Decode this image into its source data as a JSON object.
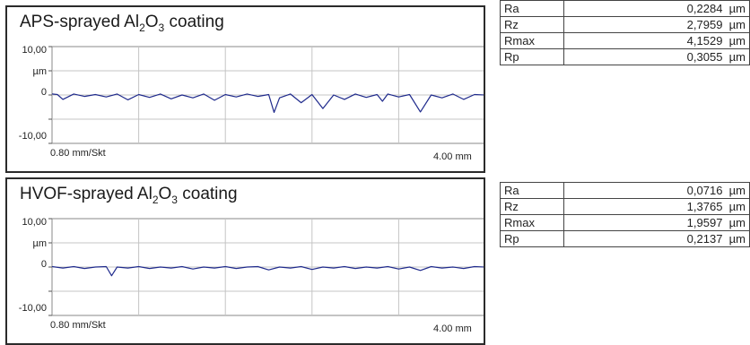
{
  "panels": [
    {
      "title_pre": "APS-sprayed Al",
      "title_sub1": "2",
      "title_mid": "O",
      "title_sub2": "3",
      "title_post": " coating",
      "y_top_label": "10,00",
      "y_unit_label": "µm",
      "y_zero_label": "0",
      "y_bottom_label": "-10,00",
      "x_scale_label": "0.80 mm/Skt",
      "x_end_label": "4.00 mm",
      "line_color": "#1f2a8c"
    },
    {
      "title_pre": "HVOF-sprayed Al",
      "title_sub1": "2",
      "title_mid": "O",
      "title_sub2": "3",
      "title_post": " coating",
      "y_top_label": "10,00",
      "y_unit_label": "µm",
      "y_zero_label": "0",
      "y_bottom_label": "-10,00",
      "x_scale_label": "0.80 mm/Skt",
      "x_end_label": "4.00 mm",
      "line_color": "#1f2a8c"
    }
  ],
  "tables": [
    {
      "rows": [
        {
          "name": "Ra",
          "value": "0,2284",
          "unit": "µm"
        },
        {
          "name": "Rz",
          "value": "2,7959",
          "unit": "µm"
        },
        {
          "name": "Rmax",
          "value": "4,1529",
          "unit": "µm"
        },
        {
          "name": "Rp",
          "value": "0,3055",
          "unit": "µm"
        }
      ]
    },
    {
      "rows": [
        {
          "name": "Ra",
          "value": "0,0716",
          "unit": "µm"
        },
        {
          "name": "Rz",
          "value": "1,3765",
          "unit": "µm"
        },
        {
          "name": "Rmax",
          "value": "1,9597",
          "unit": "µm"
        },
        {
          "name": "Rp",
          "value": "0,2137",
          "unit": "µm"
        }
      ]
    }
  ],
  "chart_data": [
    {
      "type": "line",
      "title": "APS-sprayed Al2O3 coating",
      "xlabel": "0.80 mm/Skt",
      "ylabel": "µm",
      "xlim": [
        0,
        4.0
      ],
      "ylim": [
        -10,
        10
      ],
      "grid": true,
      "x_step": 0.8,
      "series": [
        {
          "x": [
            0.0,
            0.05,
            0.1,
            0.2,
            0.3,
            0.4,
            0.5,
            0.6,
            0.7,
            0.8,
            0.9,
            1.0,
            1.1,
            1.2,
            1.3,
            1.4,
            1.5,
            1.6,
            1.7,
            1.8,
            1.9,
            2.0,
            2.05,
            2.1,
            2.2,
            2.3,
            2.4,
            2.5,
            2.6,
            2.7,
            2.8,
            2.9,
            3.0,
            3.05,
            3.1,
            3.2,
            3.3,
            3.4,
            3.5,
            3.6,
            3.7,
            3.8,
            3.9,
            4.0
          ],
          "values": [
            0.2,
            0.1,
            -0.9,
            0.2,
            -0.3,
            0.1,
            -0.4,
            0.2,
            -1.0,
            0.1,
            -0.5,
            0.2,
            -0.8,
            0.0,
            -0.6,
            0.2,
            -1.1,
            0.1,
            -0.4,
            0.2,
            -0.3,
            0.1,
            -3.6,
            -0.6,
            0.2,
            -1.6,
            0.1,
            -2.8,
            0.0,
            -0.9,
            0.2,
            -0.5,
            0.1,
            -1.3,
            0.2,
            -0.4,
            0.1,
            -3.5,
            0.0,
            -0.6,
            0.2,
            -0.9,
            0.1,
            0.0
          ]
        }
      ]
    },
    {
      "type": "line",
      "title": "HVOF-sprayed Al2O3 coating",
      "xlabel": "0.80 mm/Skt",
      "ylabel": "µm",
      "xlim": [
        0,
        4.0
      ],
      "ylim": [
        -10,
        10
      ],
      "grid": true,
      "x_step": 0.8,
      "series": [
        {
          "x": [
            0.0,
            0.1,
            0.2,
            0.3,
            0.4,
            0.5,
            0.55,
            0.6,
            0.7,
            0.8,
            0.9,
            1.0,
            1.1,
            1.2,
            1.3,
            1.4,
            1.5,
            1.6,
            1.7,
            1.8,
            1.9,
            2.0,
            2.1,
            2.2,
            2.3,
            2.4,
            2.5,
            2.6,
            2.7,
            2.8,
            2.9,
            3.0,
            3.1,
            3.2,
            3.3,
            3.4,
            3.5,
            3.6,
            3.7,
            3.8,
            3.9,
            4.0
          ],
          "values": [
            0.1,
            -0.2,
            0.1,
            -0.3,
            0.0,
            0.1,
            -1.8,
            0.0,
            -0.2,
            0.1,
            -0.3,
            0.0,
            -0.2,
            0.1,
            -0.4,
            0.0,
            -0.2,
            0.1,
            -0.3,
            0.0,
            0.1,
            -0.6,
            0.0,
            -0.2,
            0.1,
            -0.5,
            0.0,
            -0.2,
            0.1,
            -0.3,
            0.0,
            -0.2,
            0.1,
            -0.4,
            0.0,
            -0.7,
            0.1,
            -0.2,
            0.0,
            -0.3,
            0.1,
            0.0
          ]
        }
      ]
    }
  ]
}
